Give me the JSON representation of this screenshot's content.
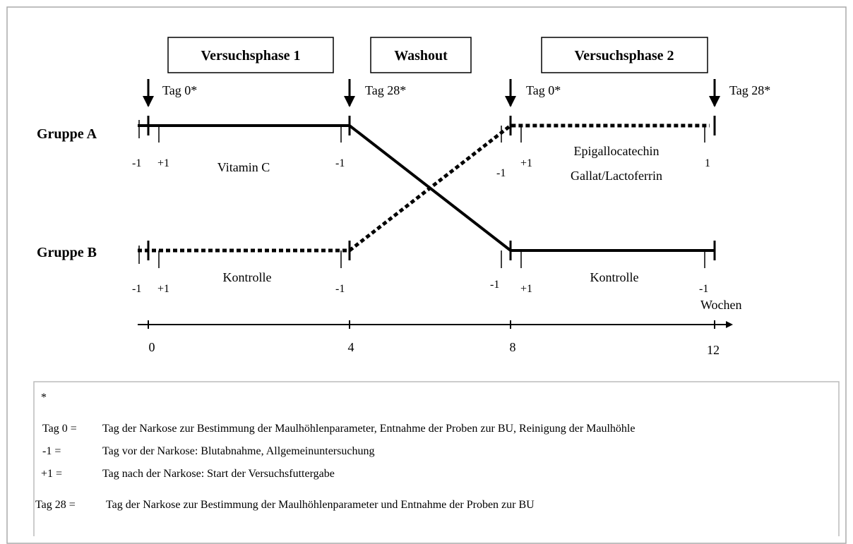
{
  "phases": [
    "Versuchsphase 1",
    "Washout",
    "Versuchsphase 2"
  ],
  "days": [
    "Tag 0*",
    "Tag 28*",
    "Tag 0*",
    "Tag 28*"
  ],
  "groups": [
    "Gruppe A",
    "Gruppe B"
  ],
  "group_a_labels": [
    "-1",
    "+1",
    "Vitamin C",
    "-1",
    "-1",
    "+1",
    "Epigallocatechin",
    "Gallat/Lactoferrin",
    "1"
  ],
  "group_b_labels": [
    "-1",
    "+1",
    "Kontrolle",
    "-1",
    "-1",
    "+1",
    "Kontrolle",
    "-1"
  ],
  "axis": {
    "label": "Wochen",
    "ticks": [
      "0",
      "4",
      "8",
      "12"
    ]
  },
  "legend": {
    "marker": "*",
    "rows": [
      {
        "term": "Tag 0 =",
        "text": "Tag der Narkose zur Bestimmung der Maulhöhlenparameter, Entnahme der Proben zur BU, Reinigung der Maulhöhle"
      },
      {
        "term": "-1 =",
        "text": "Tag vor der Narkose: Blutabnahme, Allgemeinuntersuchung"
      },
      {
        "term": "+1 =",
        "text": "Tag nach der Narkose: Start der Versuchsfuttergabe"
      },
      {
        "term": "Tag 28 =",
        "text": "Tag der Narkose zur Bestimmung der Maulhöhlenparameter und Entnahme der Proben zur BU"
      }
    ]
  }
}
